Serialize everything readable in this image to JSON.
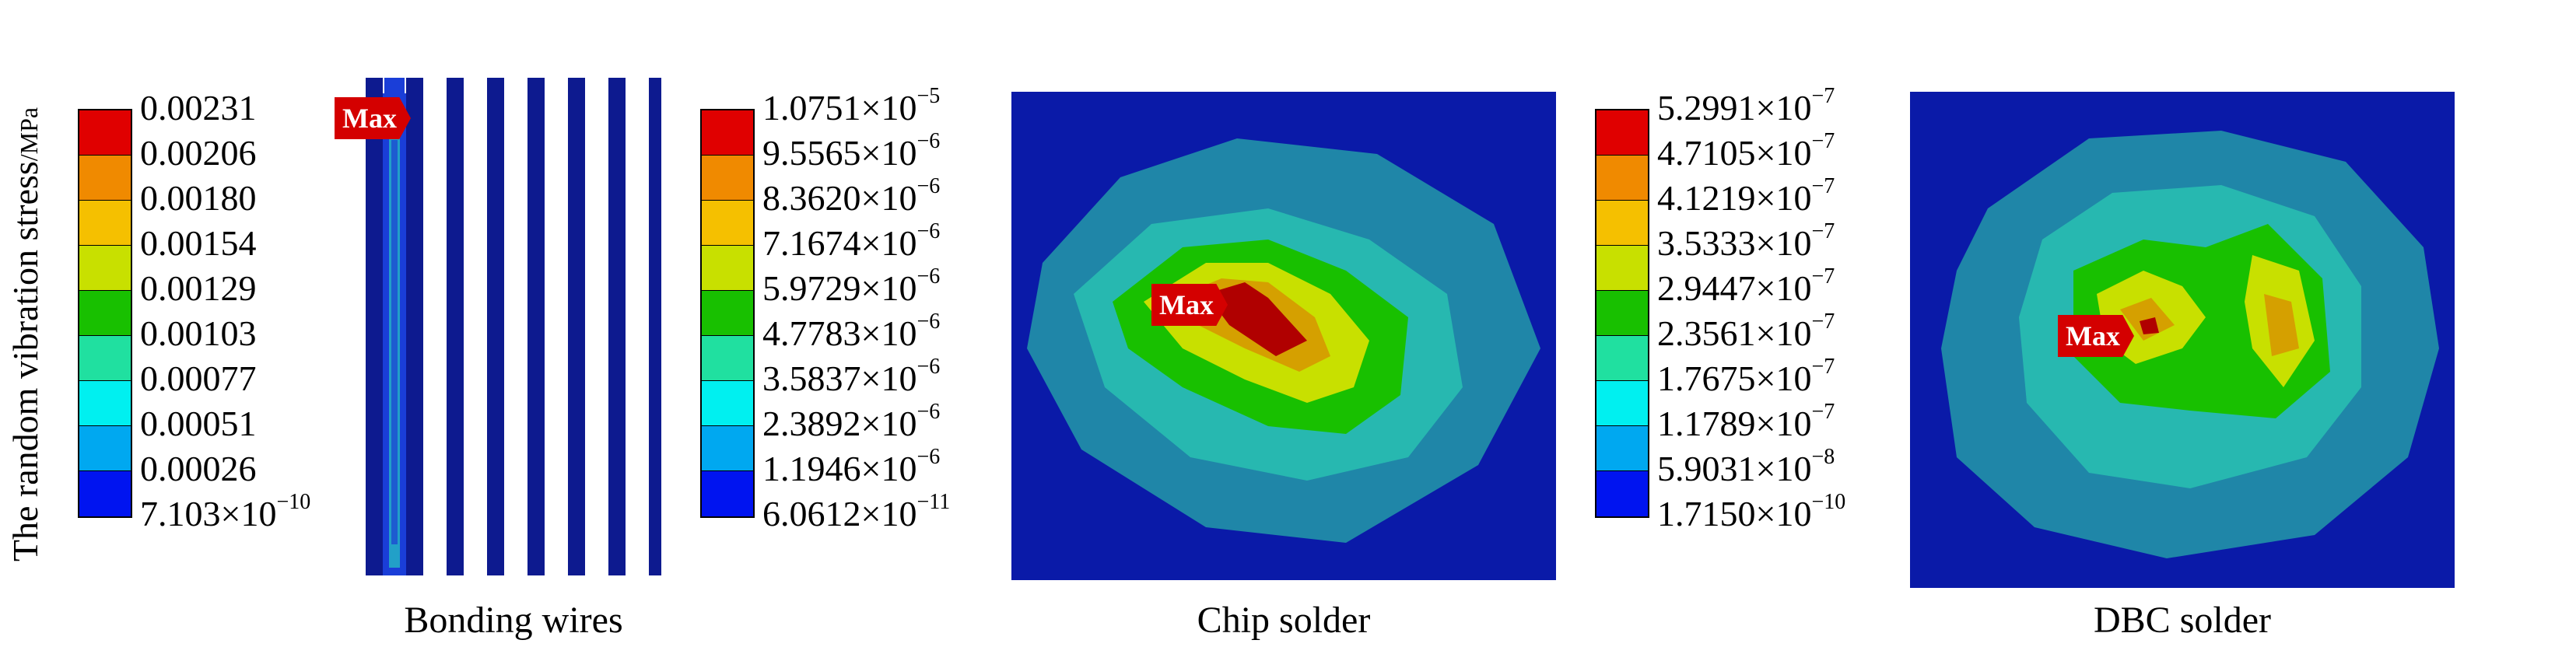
{
  "y_axis_label": "The random vibration stress",
  "y_axis_unit": "/MPa",
  "max_label": "Max",
  "colors": [
    "#e00000",
    "#f08a00",
    "#f5c000",
    "#c8e000",
    "#18c000",
    "#20e0a0",
    "#00f0f0",
    "#00a8f0",
    "#0014f0"
  ],
  "panels": [
    {
      "caption": "Bonding wires",
      "ticks": [
        "0.00231",
        "0.00206",
        "0.00180",
        "0.00154",
        "0.00129",
        "0.00103",
        "0.00077",
        "0.00051",
        "0.00026"
      ],
      "tick_last": {
        "mant": "7.103×10",
        "exp": "−10"
      }
    },
    {
      "caption": "Chip solder",
      "ticks": [
        {
          "mant": "1.0751×10",
          "exp": "−5"
        },
        {
          "mant": "9.5565×10",
          "exp": "−6"
        },
        {
          "mant": "8.3620×10",
          "exp": "−6"
        },
        {
          "mant": "7.1674×10",
          "exp": "−6"
        },
        {
          "mant": "5.9729×10",
          "exp": "−6"
        },
        {
          "mant": "4.7783×10",
          "exp": "−6"
        },
        {
          "mant": "3.5837×10",
          "exp": "−6"
        },
        {
          "mant": "2.3892×10",
          "exp": "−6"
        },
        {
          "mant": "1.1946×10",
          "exp": "−6"
        },
        {
          "mant": "6.0612×10",
          "exp": "−11"
        }
      ]
    },
    {
      "caption": "DBC solder",
      "ticks": [
        {
          "mant": "5.2991×10",
          "exp": "−7"
        },
        {
          "mant": "4.7105×10",
          "exp": "−7"
        },
        {
          "mant": "4.1219×10",
          "exp": "−7"
        },
        {
          "mant": "3.5333×10",
          "exp": "−7"
        },
        {
          "mant": "2.9447×10",
          "exp": "−7"
        },
        {
          "mant": "2.3561×10",
          "exp": "−7"
        },
        {
          "mant": "1.7675×10",
          "exp": "−7"
        },
        {
          "mant": "1.1789×10",
          "exp": "−7"
        },
        {
          "mant": "5.9031×10",
          "exp": "−8"
        },
        {
          "mant": "1.7150×10",
          "exp": "−10"
        }
      ]
    }
  ]
}
